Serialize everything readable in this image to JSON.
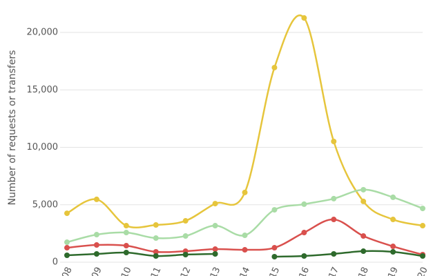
{
  "chart_data": {
    "type": "line",
    "y_label": "Number of requests or transfers",
    "categories": [
      "08",
      "09",
      "10",
      "11",
      "12",
      "13",
      "14",
      "15",
      "16",
      "17",
      "18",
      "19",
      "20"
    ],
    "ylim": [
      0,
      22000
    ],
    "yticks": [
      0,
      {
        "value": 5000,
        "label": "5,000"
      },
      {
        "value": 10000,
        "label": "10,000"
      },
      {
        "value": 15000,
        "label": "15,000"
      },
      {
        "value": 20000,
        "label": "20,000"
      }
    ],
    "grid": true,
    "series": [
      {
        "color": "#e6c53c",
        "values": [
          4260,
          5470,
          3180,
          3240,
          3600,
          5100,
          6070,
          16940,
          21260,
          10510,
          5290,
          3720,
          3180
        ]
      },
      {
        "color": "#a9dca6",
        "values": [
          1740,
          2400,
          2580,
          2100,
          2280,
          3180,
          2340,
          4560,
          5050,
          5530,
          6310,
          5650,
          4680
        ]
      },
      {
        "color": "#d9504d",
        "values": [
          1260,
          1500,
          1440,
          900,
          960,
          1140,
          1080,
          1260,
          2580,
          3720,
          2280,
          1380,
          660
        ]
      },
      {
        "color": "#2e6a2c",
        "values": [
          600,
          720,
          840,
          540,
          660,
          720,
          null,
          480,
          540,
          720,
          960,
          900,
          540
        ]
      }
    ]
  }
}
